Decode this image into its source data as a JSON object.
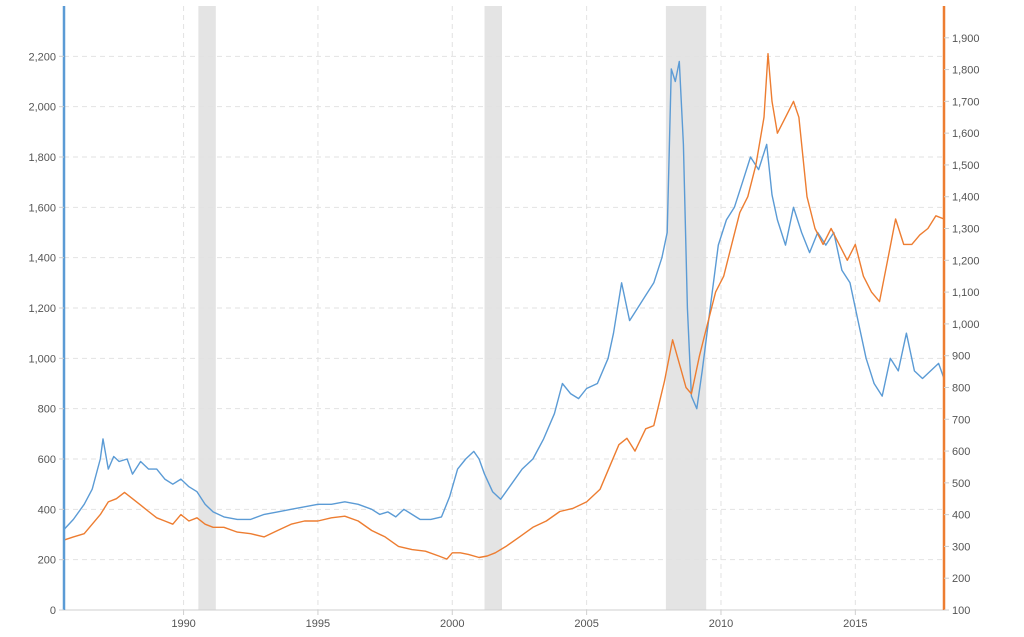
{
  "chart_data": {
    "type": "line",
    "title": "",
    "xlabel": "",
    "ylabel_left": "",
    "ylabel_right": "",
    "grid": true,
    "legend": "none",
    "x_range": [
      1985.55,
      2018.3
    ],
    "x_ticks": [
      1990,
      1995,
      2000,
      2005,
      2010,
      2015
    ],
    "x_tick_labels": [
      "1990",
      "1995",
      "2000",
      "2005",
      "2010",
      "2015"
    ],
    "y_left": {
      "range": [
        0,
        2400
      ],
      "ticks": [
        0,
        200,
        400,
        600,
        800,
        1000,
        1200,
        1400,
        1600,
        1800,
        2000,
        2200
      ],
      "tick_labels": [
        "0",
        "200",
        "400",
        "600",
        "800",
        "1,000",
        "1,200",
        "1,400",
        "1,600",
        "1,800",
        "2,000",
        "2,200"
      ],
      "color": "#5b9bd5"
    },
    "y_right": {
      "range": [
        100,
        2000
      ],
      "ticks": [
        100,
        200,
        300,
        400,
        500,
        600,
        700,
        800,
        900,
        1000,
        1100,
        1200,
        1300,
        1400,
        1500,
        1600,
        1700,
        1800,
        1900
      ],
      "tick_labels": [
        "100",
        "200",
        "300",
        "400",
        "500",
        "600",
        "700",
        "800",
        "900",
        "1,000",
        "1,100",
        "1,200",
        "1,300",
        "1,400",
        "1,500",
        "1,600",
        "1,700",
        "1,800",
        "1,900"
      ],
      "color": "#ed7d31"
    },
    "shaded_ranges": [
      [
        1990.55,
        1991.2
      ],
      [
        2001.2,
        2001.85
      ],
      [
        2007.95,
        2009.45
      ]
    ],
    "series": [
      {
        "axis": "left",
        "color": "#5b9bd5",
        "x": [
          1985.55,
          1985.9,
          1986.3,
          1986.6,
          1986.9,
          1987.0,
          1987.2,
          1987.4,
          1987.6,
          1987.9,
          1988.1,
          1988.4,
          1988.7,
          1989.0,
          1989.3,
          1989.6,
          1989.9,
          1990.2,
          1990.5,
          1990.8,
          1991.1,
          1991.5,
          1992.0,
          1992.5,
          1993.0,
          1993.5,
          1994.0,
          1994.5,
          1995.0,
          1995.5,
          1996.0,
          1996.5,
          1997.0,
          1997.3,
          1997.6,
          1997.9,
          1998.2,
          1998.5,
          1998.8,
          1999.2,
          1999.6,
          1999.9,
          2000.2,
          2000.5,
          2000.8,
          2001.0,
          2001.2,
          2001.5,
          2001.8,
          2002.2,
          2002.6,
          2003.0,
          2003.4,
          2003.8,
          2004.1,
          2004.4,
          2004.7,
          2005.0,
          2005.4,
          2005.8,
          2006.0,
          2006.3,
          2006.6,
          2006.9,
          2007.2,
          2007.5,
          2007.8,
          2008.0,
          2008.15,
          2008.3,
          2008.45,
          2008.6,
          2008.75,
          2008.9,
          2009.1,
          2009.3,
          2009.6,
          2009.9,
          2010.2,
          2010.5,
          2010.8,
          2011.1,
          2011.4,
          2011.7,
          2011.9,
          2012.1,
          2012.4,
          2012.7,
          2013.0,
          2013.3,
          2013.6,
          2013.9,
          2014.2,
          2014.5,
          2014.8,
          2015.1,
          2015.4,
          2015.7,
          2016.0,
          2016.3,
          2016.6,
          2016.9,
          2017.2,
          2017.5,
          2017.8,
          2018.1,
          2018.3
        ],
        "y": [
          320,
          360,
          420,
          480,
          600,
          680,
          560,
          610,
          590,
          600,
          540,
          590,
          560,
          560,
          520,
          500,
          520,
          490,
          470,
          420,
          390,
          370,
          360,
          360,
          380,
          390,
          400,
          410,
          420,
          420,
          430,
          420,
          400,
          380,
          390,
          370,
          400,
          380,
          360,
          360,
          370,
          450,
          560,
          600,
          630,
          600,
          540,
          470,
          440,
          500,
          560,
          600,
          680,
          780,
          900,
          860,
          840,
          880,
          900,
          1000,
          1100,
          1300,
          1150,
          1200,
          1250,
          1300,
          1400,
          1500,
          2150,
          2100,
          2180,
          1850,
          1200,
          850,
          800,
          950,
          1200,
          1450,
          1550,
          1600,
          1700,
          1800,
          1750,
          1850,
          1650,
          1550,
          1450,
          1600,
          1500,
          1420,
          1500,
          1450,
          1500,
          1350,
          1300,
          1150,
          1000,
          900,
          850,
          1000,
          950,
          1100,
          950,
          920,
          950,
          980,
          920
        ]
      },
      {
        "axis": "right",
        "color": "#ed7d31",
        "x": [
          1985.55,
          1985.9,
          1986.3,
          1986.6,
          1986.9,
          1987.2,
          1987.5,
          1987.8,
          1988.1,
          1988.4,
          1988.7,
          1989.0,
          1989.3,
          1989.6,
          1989.9,
          1990.2,
          1990.5,
          1990.8,
          1991.1,
          1991.5,
          1992.0,
          1992.5,
          1993.0,
          1993.5,
          1994.0,
          1994.5,
          1995.0,
          1995.5,
          1996.0,
          1996.5,
          1997.0,
          1997.5,
          1998.0,
          1998.5,
          1999.0,
          1999.5,
          1999.8,
          2000.0,
          2000.3,
          2000.6,
          2001.0,
          2001.3,
          2001.6,
          2002.0,
          2002.5,
          2003.0,
          2003.5,
          2004.0,
          2004.5,
          2005.0,
          2005.5,
          2005.9,
          2006.2,
          2006.5,
          2006.8,
          2007.2,
          2007.5,
          2007.9,
          2008.2,
          2008.5,
          2008.7,
          2008.9,
          2009.2,
          2009.5,
          2009.8,
          2010.1,
          2010.4,
          2010.7,
          2011.0,
          2011.3,
          2011.6,
          2011.75,
          2011.9,
          2012.1,
          2012.4,
          2012.7,
          2012.9,
          2013.2,
          2013.5,
          2013.8,
          2014.1,
          2014.4,
          2014.7,
          2015.0,
          2015.3,
          2015.6,
          2015.9,
          2016.2,
          2016.5,
          2016.8,
          2017.1,
          2017.4,
          2017.7,
          2018.0,
          2018.3
        ],
        "y": [
          320,
          330,
          340,
          370,
          400,
          440,
          450,
          470,
          450,
          430,
          410,
          390,
          380,
          370,
          400,
          380,
          390,
          370,
          360,
          360,
          345,
          340,
          330,
          350,
          370,
          380,
          380,
          390,
          395,
          380,
          350,
          330,
          300,
          290,
          285,
          270,
          260,
          280,
          280,
          275,
          265,
          270,
          280,
          300,
          330,
          360,
          380,
          410,
          420,
          440,
          480,
          560,
          620,
          640,
          600,
          670,
          680,
          820,
          950,
          860,
          800,
          780,
          900,
          1000,
          1100,
          1150,
          1250,
          1350,
          1400,
          1500,
          1650,
          1850,
          1700,
          1600,
          1650,
          1700,
          1650,
          1400,
          1300,
          1250,
          1300,
          1250,
          1200,
          1250,
          1150,
          1100,
          1070,
          1200,
          1330,
          1250,
          1250,
          1280,
          1300,
          1340,
          1330
        ]
      }
    ]
  }
}
